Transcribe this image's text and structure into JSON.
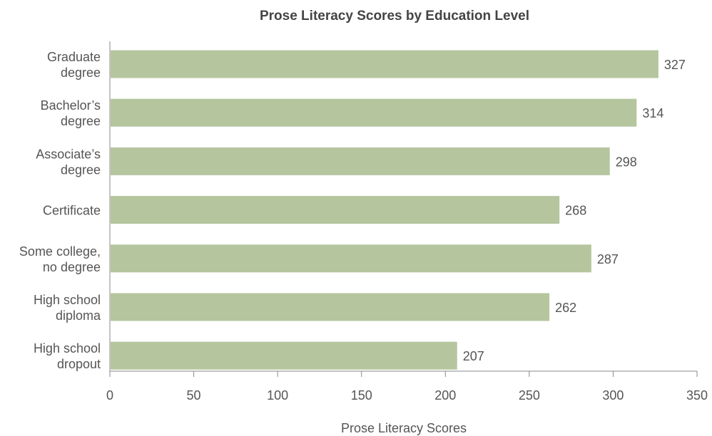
{
  "chart_data": {
    "type": "bar",
    "orientation": "horizontal",
    "title": "Prose Literacy Scores by Education Level",
    "xlabel": "Prose Literacy Scores",
    "ylabel": "",
    "categories": [
      [
        "Graduate",
        "degree"
      ],
      [
        "Bachelor’s",
        "degree"
      ],
      [
        "Associate’s",
        "degree"
      ],
      [
        "Certificate"
      ],
      [
        "Some college,",
        "no degree"
      ],
      [
        "High school",
        "diploma"
      ],
      [
        "High school",
        "dropout"
      ]
    ],
    "values": [
      327,
      314,
      298,
      268,
      287,
      262,
      207
    ],
    "value_labels": [
      "327",
      "314",
      "298",
      "268",
      "287",
      "262",
      "207"
    ],
    "xlim": [
      0,
      350
    ],
    "xticks": [
      0,
      50,
      100,
      150,
      200,
      250,
      300,
      350
    ],
    "xtick_labels": [
      "0",
      "50",
      "100",
      "150",
      "200",
      "250",
      "300",
      "350"
    ],
    "bar_color": "#b5c59e",
    "grid": false,
    "legend": "none"
  }
}
